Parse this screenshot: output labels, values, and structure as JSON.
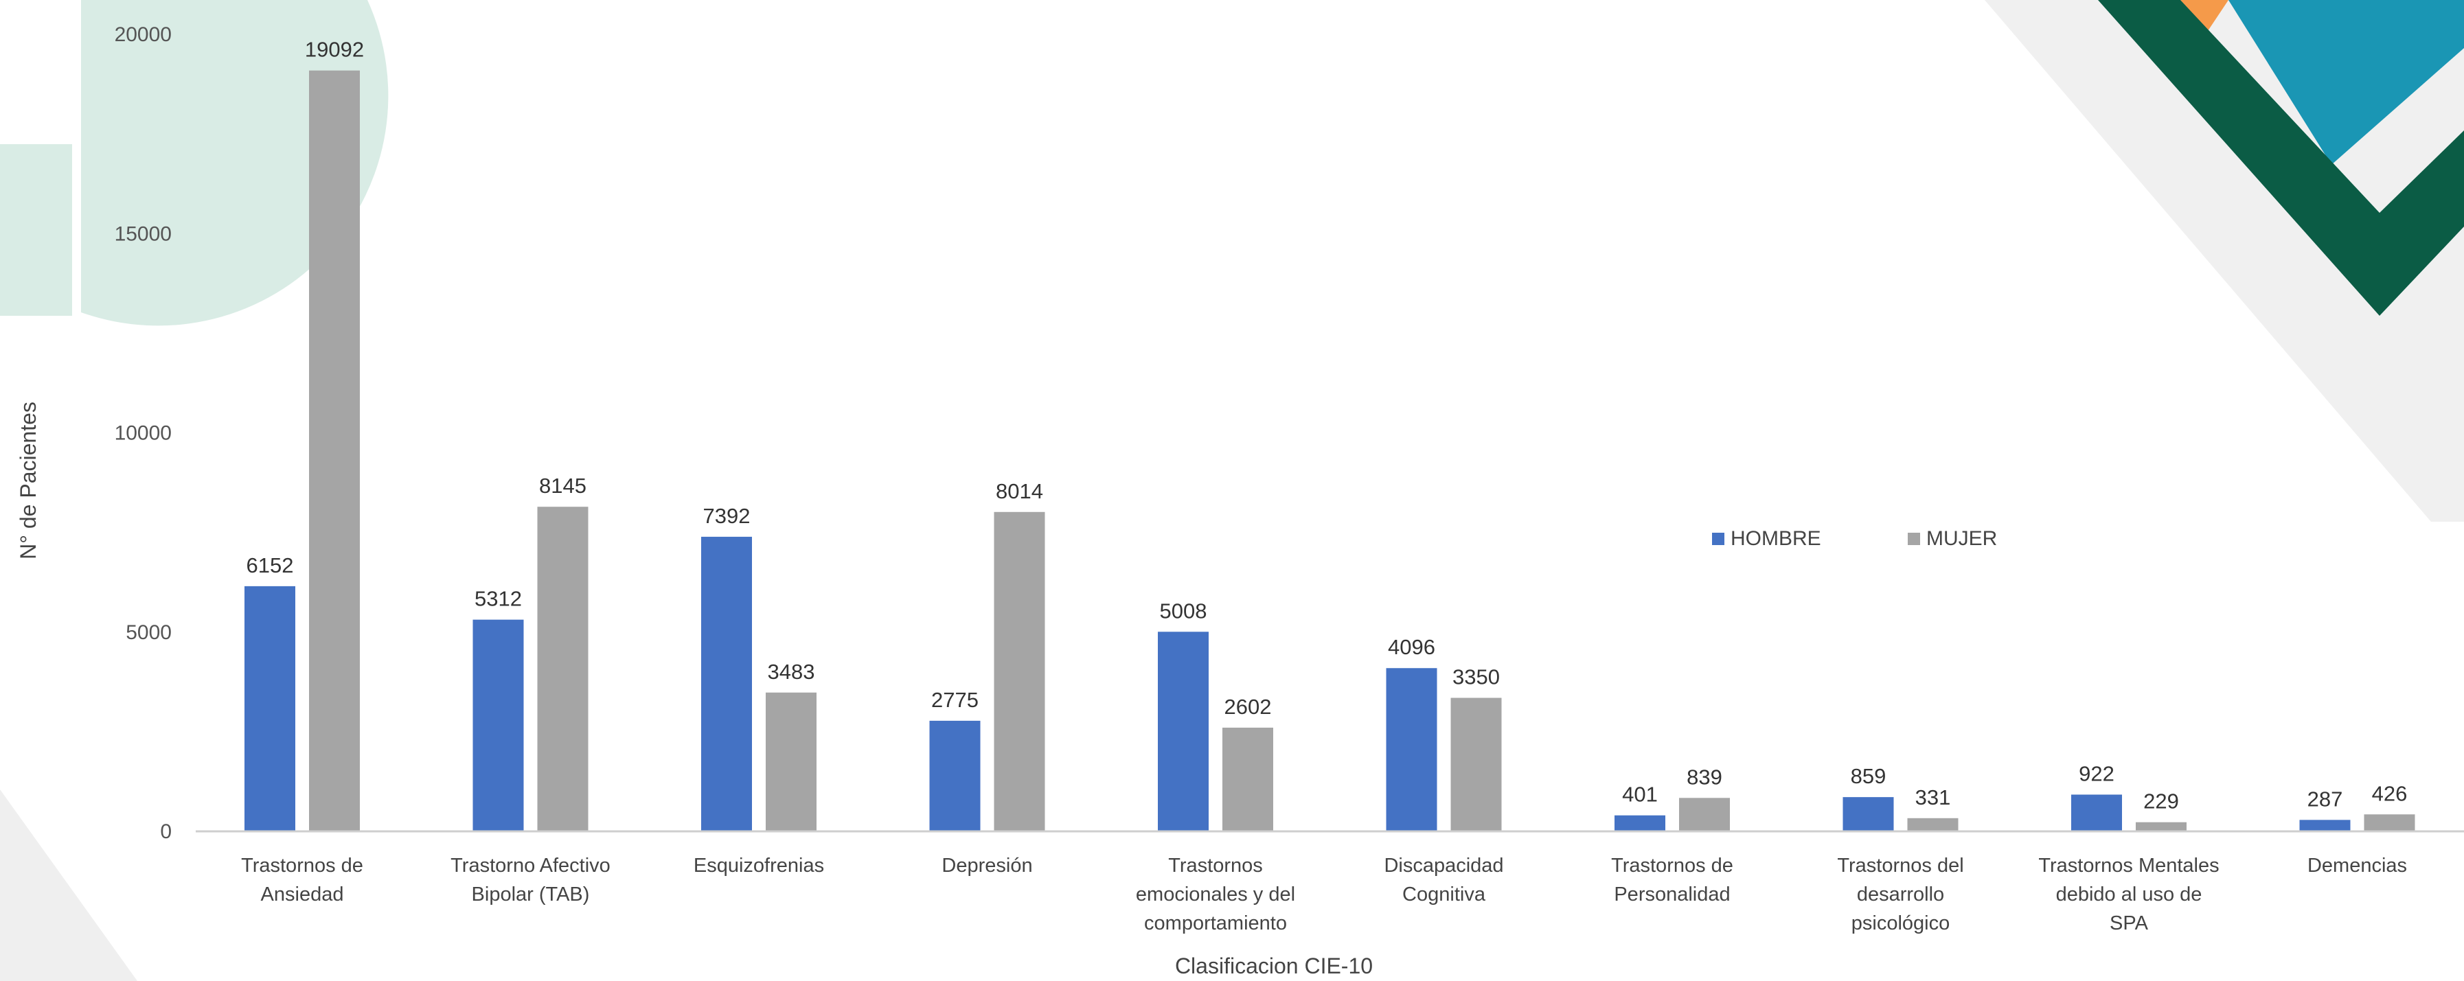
{
  "chart_data": {
    "type": "bar",
    "xlabel": "Clasificacion CIE-10",
    "ylabel": "N° de Pacientes",
    "ylim": [
      0,
      20000
    ],
    "yticks": [
      0,
      5000,
      10000,
      15000,
      20000
    ],
    "grid": false,
    "legend_position": "right-middle",
    "categories": [
      [
        "Trastornos de",
        "Ansiedad"
      ],
      [
        "Trastorno Afectivo",
        "Bipolar (TAB)"
      ],
      [
        "Esquizofrenias"
      ],
      [
        "Depresión"
      ],
      [
        "Trastornos",
        "emocionales y del",
        "comportamiento"
      ],
      [
        "Discapacidad",
        "Cognitiva"
      ],
      [
        "Trastornos de",
        "Personalidad"
      ],
      [
        "Trastornos del",
        "desarrollo",
        "psicológico"
      ],
      [
        "Trastornos Mentales",
        "debido al uso de",
        "SPA"
      ],
      [
        "Demencias"
      ]
    ],
    "series": [
      {
        "name": "HOMBRE",
        "color": "#4472c4",
        "values": [
          6152,
          5312,
          7392,
          2775,
          5008,
          4096,
          401,
          859,
          922,
          287
        ]
      },
      {
        "name": "MUJER",
        "color": "#a5a5a5",
        "values": [
          19092,
          8145,
          3483,
          8014,
          2602,
          3350,
          839,
          331,
          229,
          426
        ]
      }
    ]
  },
  "decor_colors": {
    "mint": "#d9ece5",
    "dark_green": "#0b5c45",
    "teal": "#1a96b4",
    "orange": "#f59a4a",
    "light_gray": "#eeeeee"
  }
}
